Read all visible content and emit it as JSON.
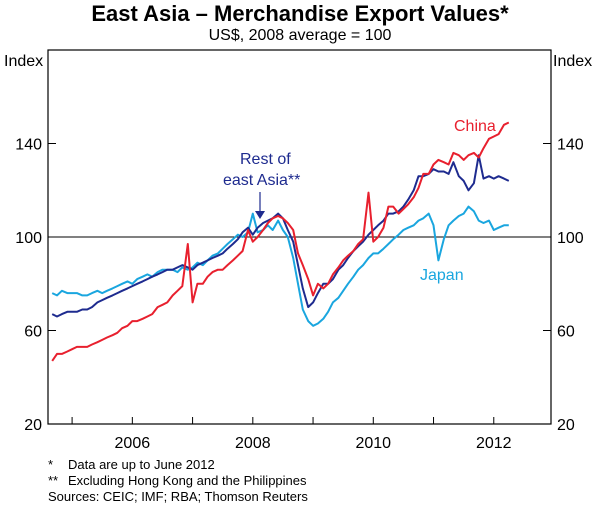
{
  "chart_data": {
    "type": "line",
    "title": "East Asia – Merchandise Export Values*",
    "subtitle": "US$, 2008 average = 100",
    "ylabel_left": "Index",
    "ylabel_right": "Index",
    "ylim": [
      20,
      180
    ],
    "yticks": [
      20,
      60,
      100,
      140
    ],
    "xlim": [
      2004.6,
      2012.95
    ],
    "xticks": [
      2006,
      2008,
      2010,
      2012
    ],
    "reference_line": 100,
    "grid": false,
    "series": [
      {
        "name": "China",
        "label_text": "China",
        "color": "#e8202e",
        "points": [
          [
            2004.67,
            47
          ],
          [
            2004.75,
            50
          ],
          [
            2004.83,
            50
          ],
          [
            2004.92,
            51
          ],
          [
            2005.0,
            52
          ],
          [
            2005.08,
            53
          ],
          [
            2005.17,
            53
          ],
          [
            2005.25,
            53
          ],
          [
            2005.33,
            54
          ],
          [
            2005.42,
            55
          ],
          [
            2005.5,
            56
          ],
          [
            2005.58,
            57
          ],
          [
            2005.67,
            58
          ],
          [
            2005.75,
            59
          ],
          [
            2005.83,
            61
          ],
          [
            2005.92,
            62
          ],
          [
            2006.0,
            64
          ],
          [
            2006.08,
            64
          ],
          [
            2006.17,
            65
          ],
          [
            2006.25,
            66
          ],
          [
            2006.33,
            67
          ],
          [
            2006.42,
            70
          ],
          [
            2006.5,
            71
          ],
          [
            2006.58,
            72
          ],
          [
            2006.67,
            75
          ],
          [
            2006.75,
            77
          ],
          [
            2006.83,
            79
          ],
          [
            2006.92,
            97
          ],
          [
            2007.0,
            72
          ],
          [
            2007.08,
            80
          ],
          [
            2007.17,
            80
          ],
          [
            2007.25,
            83
          ],
          [
            2007.33,
            85
          ],
          [
            2007.42,
            86
          ],
          [
            2007.5,
            86
          ],
          [
            2007.58,
            88
          ],
          [
            2007.67,
            90
          ],
          [
            2007.75,
            92
          ],
          [
            2007.83,
            94
          ],
          [
            2007.92,
            103
          ],
          [
            2008.0,
            98
          ],
          [
            2008.08,
            100
          ],
          [
            2008.17,
            103
          ],
          [
            2008.25,
            106
          ],
          [
            2008.33,
            108
          ],
          [
            2008.42,
            109
          ],
          [
            2008.5,
            108
          ],
          [
            2008.58,
            106
          ],
          [
            2008.67,
            103
          ],
          [
            2008.75,
            93
          ],
          [
            2008.83,
            88
          ],
          [
            2008.92,
            82
          ],
          [
            2009.0,
            75
          ],
          [
            2009.08,
            80
          ],
          [
            2009.17,
            78
          ],
          [
            2009.25,
            80
          ],
          [
            2009.33,
            84
          ],
          [
            2009.42,
            87
          ],
          [
            2009.5,
            90
          ],
          [
            2009.58,
            92
          ],
          [
            2009.67,
            94
          ],
          [
            2009.75,
            97
          ],
          [
            2009.83,
            99
          ],
          [
            2009.92,
            119
          ],
          [
            2010.0,
            98
          ],
          [
            2010.08,
            100
          ],
          [
            2010.17,
            104
          ],
          [
            2010.25,
            113
          ],
          [
            2010.33,
            113
          ],
          [
            2010.42,
            110
          ],
          [
            2010.5,
            112
          ],
          [
            2010.58,
            114
          ],
          [
            2010.67,
            117
          ],
          [
            2010.75,
            121
          ],
          [
            2010.83,
            127
          ],
          [
            2010.92,
            127
          ],
          [
            2011.0,
            131
          ],
          [
            2011.08,
            133
          ],
          [
            2011.17,
            132
          ],
          [
            2011.25,
            131
          ],
          [
            2011.33,
            136
          ],
          [
            2011.42,
            135
          ],
          [
            2011.5,
            133
          ],
          [
            2011.58,
            135
          ],
          [
            2011.67,
            136
          ],
          [
            2011.75,
            134
          ],
          [
            2011.83,
            138
          ],
          [
            2011.92,
            142
          ],
          [
            2012.0,
            143
          ],
          [
            2012.08,
            144
          ],
          [
            2012.17,
            148
          ],
          [
            2012.25,
            149
          ]
        ]
      },
      {
        "name": "Rest of east Asia**",
        "label_lines": [
          "Rest of",
          "east Asia**"
        ],
        "color": "#1e2b8f",
        "points": [
          [
            2004.67,
            67
          ],
          [
            2004.75,
            66
          ],
          [
            2004.83,
            67
          ],
          [
            2004.92,
            68
          ],
          [
            2005.0,
            68
          ],
          [
            2005.08,
            68
          ],
          [
            2005.17,
            69
          ],
          [
            2005.25,
            69
          ],
          [
            2005.33,
            70
          ],
          [
            2005.42,
            72
          ],
          [
            2005.5,
            73
          ],
          [
            2005.58,
            74
          ],
          [
            2005.67,
            75
          ],
          [
            2005.75,
            76
          ],
          [
            2005.83,
            77
          ],
          [
            2005.92,
            78
          ],
          [
            2006.0,
            79
          ],
          [
            2006.08,
            80
          ],
          [
            2006.17,
            81
          ],
          [
            2006.25,
            82
          ],
          [
            2006.33,
            83
          ],
          [
            2006.42,
            84
          ],
          [
            2006.5,
            85
          ],
          [
            2006.58,
            86
          ],
          [
            2006.67,
            86
          ],
          [
            2006.75,
            87
          ],
          [
            2006.83,
            88
          ],
          [
            2006.92,
            87
          ],
          [
            2007.0,
            86
          ],
          [
            2007.08,
            88
          ],
          [
            2007.17,
            89
          ],
          [
            2007.25,
            90
          ],
          [
            2007.33,
            91
          ],
          [
            2007.42,
            92
          ],
          [
            2007.5,
            93
          ],
          [
            2007.58,
            95
          ],
          [
            2007.67,
            97
          ],
          [
            2007.75,
            99
          ],
          [
            2007.83,
            102
          ],
          [
            2007.92,
            104
          ],
          [
            2008.0,
            101
          ],
          [
            2008.08,
            104
          ],
          [
            2008.17,
            106
          ],
          [
            2008.25,
            107
          ],
          [
            2008.33,
            108
          ],
          [
            2008.42,
            110
          ],
          [
            2008.5,
            108
          ],
          [
            2008.58,
            103
          ],
          [
            2008.67,
            98
          ],
          [
            2008.75,
            88
          ],
          [
            2008.83,
            78
          ],
          [
            2008.92,
            70
          ],
          [
            2009.0,
            72
          ],
          [
            2009.08,
            76
          ],
          [
            2009.17,
            80
          ],
          [
            2009.25,
            80
          ],
          [
            2009.33,
            82
          ],
          [
            2009.42,
            86
          ],
          [
            2009.5,
            88
          ],
          [
            2009.58,
            91
          ],
          [
            2009.67,
            94
          ],
          [
            2009.75,
            96
          ],
          [
            2009.83,
            98
          ],
          [
            2009.92,
            101
          ],
          [
            2010.0,
            103
          ],
          [
            2010.08,
            105
          ],
          [
            2010.17,
            107
          ],
          [
            2010.25,
            110
          ],
          [
            2010.33,
            110
          ],
          [
            2010.42,
            111
          ],
          [
            2010.5,
            113
          ],
          [
            2010.58,
            116
          ],
          [
            2010.67,
            120
          ],
          [
            2010.75,
            126
          ],
          [
            2010.83,
            126
          ],
          [
            2010.92,
            127
          ],
          [
            2011.0,
            129
          ],
          [
            2011.08,
            128
          ],
          [
            2011.17,
            128
          ],
          [
            2011.25,
            127
          ],
          [
            2011.33,
            132
          ],
          [
            2011.42,
            126
          ],
          [
            2011.5,
            124
          ],
          [
            2011.58,
            120
          ],
          [
            2011.67,
            123
          ],
          [
            2011.75,
            135
          ],
          [
            2011.83,
            125
          ],
          [
            2011.92,
            126
          ],
          [
            2012.0,
            125
          ],
          [
            2012.08,
            126
          ],
          [
            2012.17,
            125
          ],
          [
            2012.25,
            124
          ]
        ]
      },
      {
        "name": "Japan",
        "label_text": "Japan",
        "color": "#1aa6df",
        "points": [
          [
            2004.67,
            76
          ],
          [
            2004.75,
            75
          ],
          [
            2004.83,
            77
          ],
          [
            2004.92,
            76
          ],
          [
            2005.0,
            76
          ],
          [
            2005.08,
            76
          ],
          [
            2005.17,
            75
          ],
          [
            2005.25,
            75
          ],
          [
            2005.33,
            76
          ],
          [
            2005.42,
            77
          ],
          [
            2005.5,
            76
          ],
          [
            2005.58,
            77
          ],
          [
            2005.67,
            78
          ],
          [
            2005.75,
            79
          ],
          [
            2005.83,
            80
          ],
          [
            2005.92,
            81
          ],
          [
            2006.0,
            80
          ],
          [
            2006.08,
            82
          ],
          [
            2006.17,
            83
          ],
          [
            2006.25,
            84
          ],
          [
            2006.33,
            83
          ],
          [
            2006.42,
            85
          ],
          [
            2006.5,
            86
          ],
          [
            2006.58,
            86
          ],
          [
            2006.67,
            86
          ],
          [
            2006.75,
            85
          ],
          [
            2006.83,
            87
          ],
          [
            2006.92,
            86
          ],
          [
            2007.0,
            87
          ],
          [
            2007.08,
            89
          ],
          [
            2007.17,
            88
          ],
          [
            2007.25,
            90
          ],
          [
            2007.33,
            92
          ],
          [
            2007.42,
            93
          ],
          [
            2007.5,
            95
          ],
          [
            2007.58,
            97
          ],
          [
            2007.67,
            99
          ],
          [
            2007.75,
            101
          ],
          [
            2007.83,
            100
          ],
          [
            2007.92,
            102
          ],
          [
            2008.0,
            110
          ],
          [
            2008.08,
            102
          ],
          [
            2008.17,
            103
          ],
          [
            2008.25,
            105
          ],
          [
            2008.33,
            103
          ],
          [
            2008.42,
            107
          ],
          [
            2008.5,
            103
          ],
          [
            2008.58,
            100
          ],
          [
            2008.67,
            91
          ],
          [
            2008.75,
            80
          ],
          [
            2008.83,
            69
          ],
          [
            2008.92,
            64
          ],
          [
            2009.0,
            62
          ],
          [
            2009.08,
            63
          ],
          [
            2009.17,
            65
          ],
          [
            2009.25,
            68
          ],
          [
            2009.33,
            72
          ],
          [
            2009.42,
            74
          ],
          [
            2009.5,
            77
          ],
          [
            2009.58,
            80
          ],
          [
            2009.67,
            83
          ],
          [
            2009.75,
            86
          ],
          [
            2009.83,
            88
          ],
          [
            2009.92,
            91
          ],
          [
            2010.0,
            93
          ],
          [
            2010.08,
            93
          ],
          [
            2010.17,
            95
          ],
          [
            2010.25,
            97
          ],
          [
            2010.33,
            99
          ],
          [
            2010.42,
            101
          ],
          [
            2010.5,
            103
          ],
          [
            2010.58,
            104
          ],
          [
            2010.67,
            105
          ],
          [
            2010.75,
            107
          ],
          [
            2010.83,
            108
          ],
          [
            2010.92,
            110
          ],
          [
            2011.0,
            105
          ],
          [
            2011.08,
            90
          ],
          [
            2011.17,
            99
          ],
          [
            2011.25,
            105
          ],
          [
            2011.33,
            107
          ],
          [
            2011.42,
            109
          ],
          [
            2011.5,
            110
          ],
          [
            2011.58,
            113
          ],
          [
            2011.67,
            111
          ],
          [
            2011.75,
            107
          ],
          [
            2011.83,
            106
          ],
          [
            2011.92,
            107
          ],
          [
            2012.0,
            103
          ],
          [
            2012.08,
            104
          ],
          [
            2012.17,
            105
          ],
          [
            2012.25,
            105
          ]
        ]
      }
    ]
  },
  "notes": [
    {
      "mark": "*",
      "text": "Data are up to June 2012"
    },
    {
      "mark": "**",
      "text": "Excluding Hong Kong and the Philippines"
    }
  ],
  "sources": "Sources: CEIC; IMF; RBA; Thomson Reuters"
}
